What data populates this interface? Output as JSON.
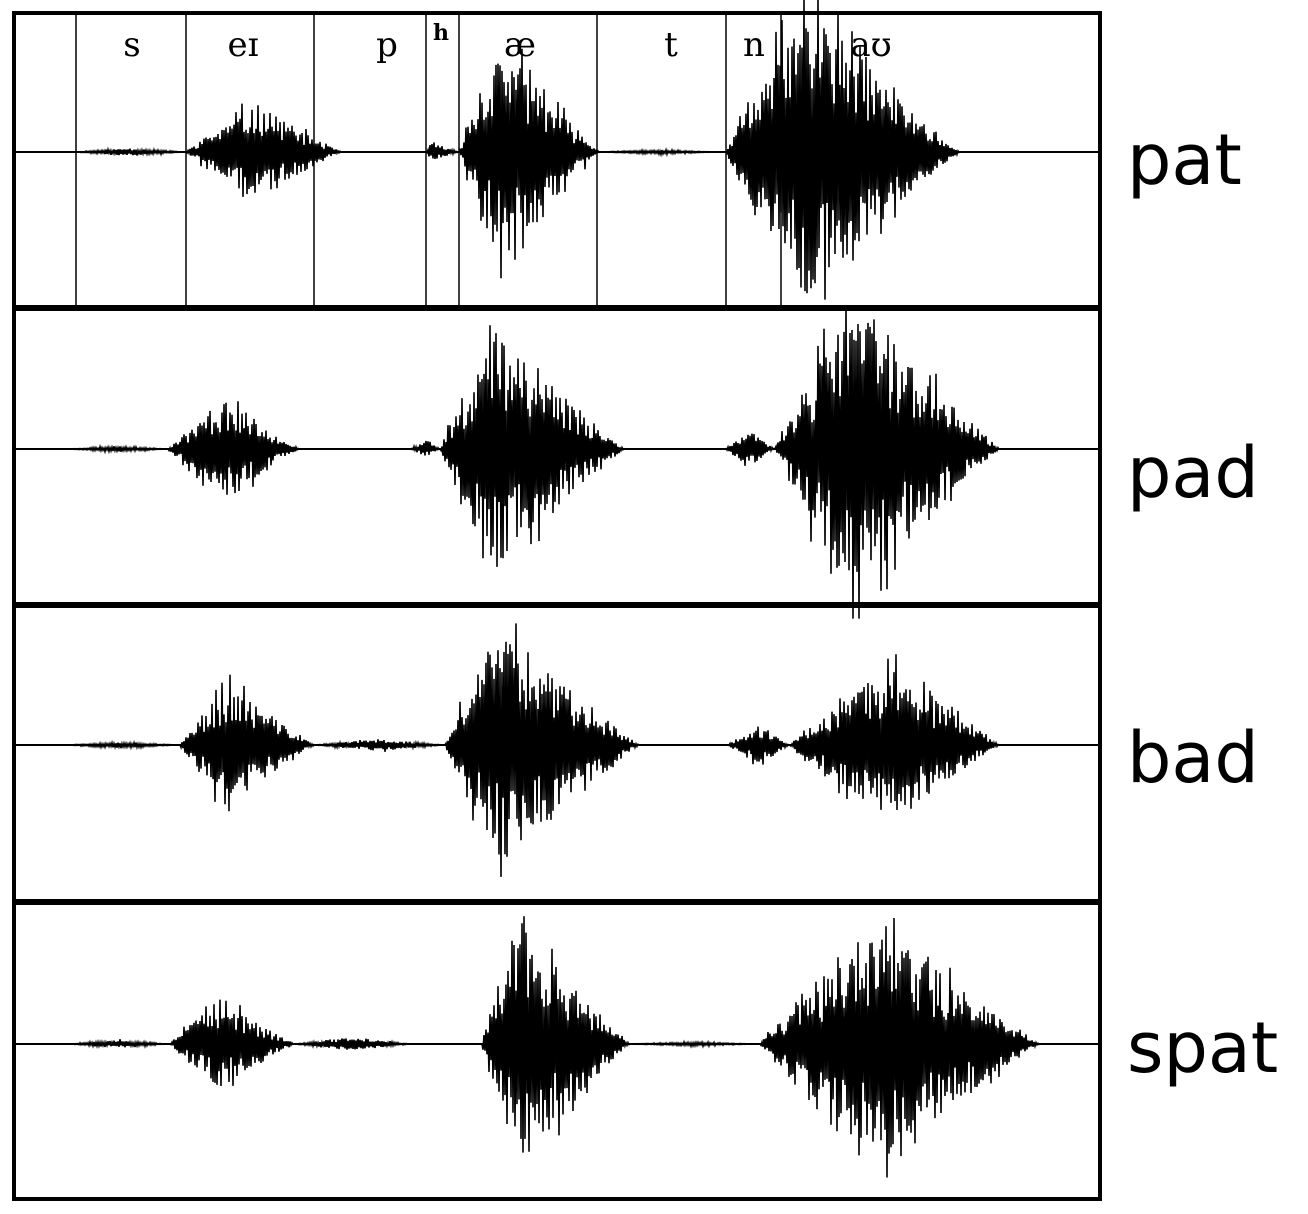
{
  "figure": {
    "segments": [
      {
        "id": "s",
        "label": "s"
      },
      {
        "id": "ei",
        "label": "eɪ"
      },
      {
        "id": "p",
        "label": "p"
      },
      {
        "id": "h",
        "label": "h"
      },
      {
        "id": "ae",
        "label": "æ"
      },
      {
        "id": "t",
        "label": "t"
      },
      {
        "id": "n",
        "label": "n"
      },
      {
        "id": "au",
        "label": "aʊ"
      }
    ],
    "panels": [
      {
        "word": "pat"
      },
      {
        "word": "pad"
      },
      {
        "word": "bad"
      },
      {
        "word": "spat"
      }
    ],
    "colors": {
      "ink": "#000000",
      "background": "#ffffff"
    }
  }
}
